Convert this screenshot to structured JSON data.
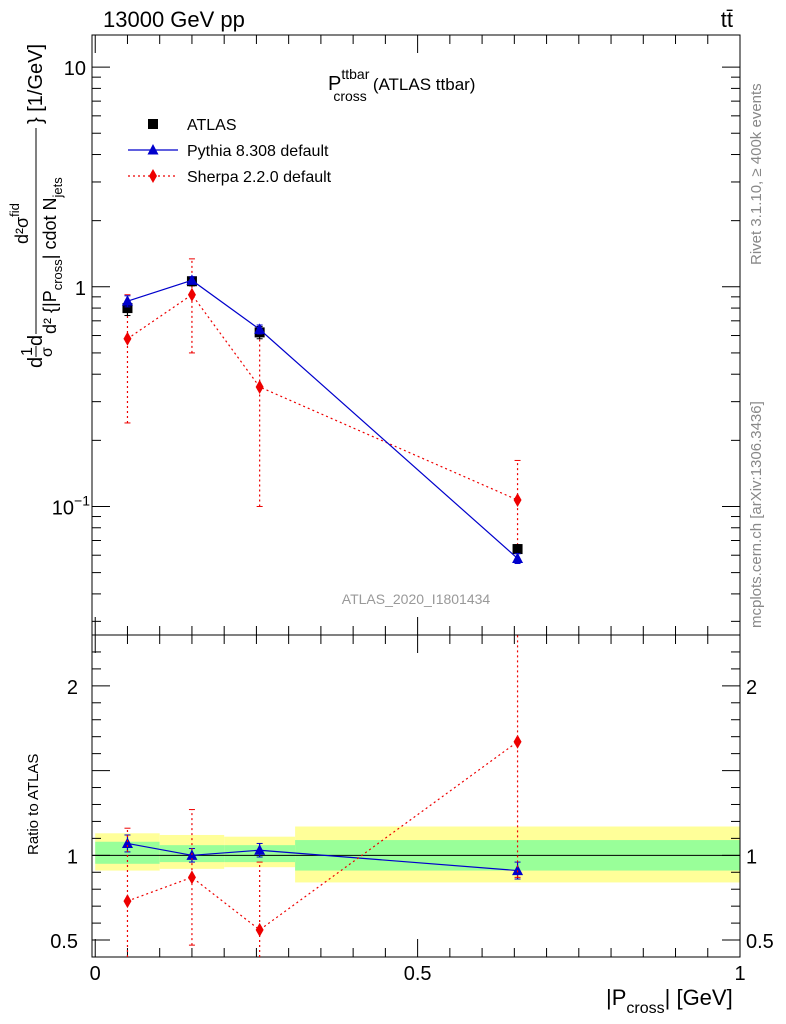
{
  "header": {
    "left": "13000 GeV pp",
    "right": "tt̄"
  },
  "side_labels": {
    "rivet": "Rivet 3.1.10, ≥ 400k events",
    "mcplots": "mcplots.cern.ch [arXiv:1306.3436]"
  },
  "chart_data": [
    {
      "type": "scatter",
      "panel": "main",
      "title": "P_cross^ttbar (ATLAS ttbar)",
      "title_main": "P",
      "title_sup": "ttbar",
      "title_sub": "cross",
      "title_suffix": "(ATLAS ttbar)",
      "analysis_label": "ATLAS_2020_I1801434",
      "ylabel": "(1/σ) dσ / d|P_cross| {1/GeV}",
      "ylabel_parts": {
        "top_outer": "d",
        "top_frac_num": "1",
        "top_frac_den": "σ",
        "frac_num": "d²σ",
        "frac_num_sup": "fid",
        "frac_den": "d² {|P",
        "frac_den_sub": "cross",
        "frac_den_tail": "| cdot N",
        "frac_den_tail_sub": "jets",
        "bracket_close": "} [1/GeV]"
      },
      "yscale": "log",
      "ylim": [
        0.026,
        14
      ],
      "xlim": [
        -0.005,
        1.0
      ],
      "y_ticks": [
        {
          "value": 0.1,
          "label": "10",
          "sup": "−1"
        },
        {
          "value": 1,
          "label": "1"
        },
        {
          "value": 10,
          "label": "10"
        }
      ],
      "legend_position": "top-left",
      "series": [
        {
          "name": "ATLAS",
          "marker": "square",
          "color": "#000000",
          "points": [
            {
              "x": 0.05,
              "y": 0.8,
              "err_lo": 0.06,
              "err_hi": 0.06
            },
            {
              "x": 0.15,
              "y": 1.06,
              "err_lo": 0.05,
              "err_hi": 0.05
            },
            {
              "x": 0.255,
              "y": 0.62,
              "err_lo": 0.04,
              "err_hi": 0.04
            },
            {
              "x": 0.655,
              "y": 0.064,
              "err_lo": 0.003,
              "err_hi": 0.003
            }
          ]
        },
        {
          "name": "Pythia 8.308 default",
          "marker": "triangle",
          "line": "solid",
          "color": "#0000cc",
          "points": [
            {
              "x": 0.05,
              "y": 0.86,
              "err_lo": 0.05,
              "err_hi": 0.05
            },
            {
              "x": 0.15,
              "y": 1.07,
              "err_lo": 0.04,
              "err_hi": 0.04
            },
            {
              "x": 0.255,
              "y": 0.64,
              "err_lo": 0.03,
              "err_hi": 0.03
            },
            {
              "x": 0.655,
              "y": 0.058,
              "err_lo": 0.003,
              "err_hi": 0.003
            }
          ]
        },
        {
          "name": "Sherpa 2.2.0 default",
          "marker": "diamond",
          "line": "dotted",
          "color": "#ee0000",
          "points": [
            {
              "x": 0.05,
              "y": 0.58,
              "err_lo": 0.34,
              "err_hi": 0.34
            },
            {
              "x": 0.15,
              "y": 0.92,
              "err_lo": 0.42,
              "err_hi": 0.42
            },
            {
              "x": 0.255,
              "y": 0.35,
              "err_lo": 0.25,
              "err_hi": 0.25
            },
            {
              "x": 0.655,
              "y": 0.107,
              "err_lo": 0.05,
              "err_hi": 0.055
            }
          ]
        }
      ]
    },
    {
      "type": "scatter",
      "panel": "ratio",
      "ylabel": "Ratio to ATLAS",
      "xlabel_main": "|P",
      "xlabel_sub": "cross",
      "xlabel_tail": "| [GeV]",
      "ylim": [
        0.4,
        2.3
      ],
      "xlim": [
        -0.005,
        1.0
      ],
      "x_ticks": [
        {
          "value": 0,
          "label": "0"
        },
        {
          "value": 0.5,
          "label": "0.5"
        },
        {
          "value": 1,
          "label": "1"
        }
      ],
      "y_ticks": [
        {
          "value": 0.5,
          "label": "0.5"
        },
        {
          "value": 1,
          "label": "1"
        },
        {
          "value": 2,
          "label": "2"
        }
      ],
      "bands": [
        {
          "x0": 0.0,
          "x1": 0.1,
          "inner": [
            0.95,
            1.08
          ],
          "outer": [
            0.91,
            1.13
          ]
        },
        {
          "x0": 0.1,
          "x1": 0.2,
          "inner": [
            0.96,
            1.06
          ],
          "outer": [
            0.92,
            1.12
          ]
        },
        {
          "x0": 0.2,
          "x1": 0.31,
          "inner": [
            0.96,
            1.06
          ],
          "outer": [
            0.93,
            1.11
          ]
        },
        {
          "x0": 0.31,
          "x1": 1.0,
          "inner": [
            0.91,
            1.09
          ],
          "outer": [
            0.84,
            1.17
          ]
        }
      ],
      "band_colors": {
        "inner": "#99ff99",
        "outer": "#ffff99"
      },
      "series": [
        {
          "name": "Pythia 8.308 default",
          "marker": "triangle",
          "line": "solid",
          "color": "#0000cc",
          "points": [
            {
              "x": 0.05,
              "y": 1.07,
              "err_lo": 0.05,
              "err_hi": 0.05
            },
            {
              "x": 0.15,
              "y": 1.0,
              "err_lo": 0.04,
              "err_hi": 0.04
            },
            {
              "x": 0.255,
              "y": 1.03,
              "err_lo": 0.04,
              "err_hi": 0.04
            },
            {
              "x": 0.655,
              "y": 0.91,
              "err_lo": 0.05,
              "err_hi": 0.05
            }
          ]
        },
        {
          "name": "Sherpa 2.2.0 default",
          "marker": "diamond",
          "line": "dotted",
          "color": "#ee0000",
          "points": [
            {
              "x": 0.05,
              "y": 0.73,
              "err_lo": 0.43,
              "err_hi": 0.43
            },
            {
              "x": 0.15,
              "y": 0.87,
              "err_lo": 0.4,
              "err_hi": 0.4
            },
            {
              "x": 0.255,
              "y": 0.56,
              "err_lo": 0.4,
              "err_hi": 0.4
            },
            {
              "x": 0.655,
              "y": 1.67,
              "err_lo": 0.8,
              "err_hi": 0.8
            }
          ]
        }
      ]
    }
  ]
}
